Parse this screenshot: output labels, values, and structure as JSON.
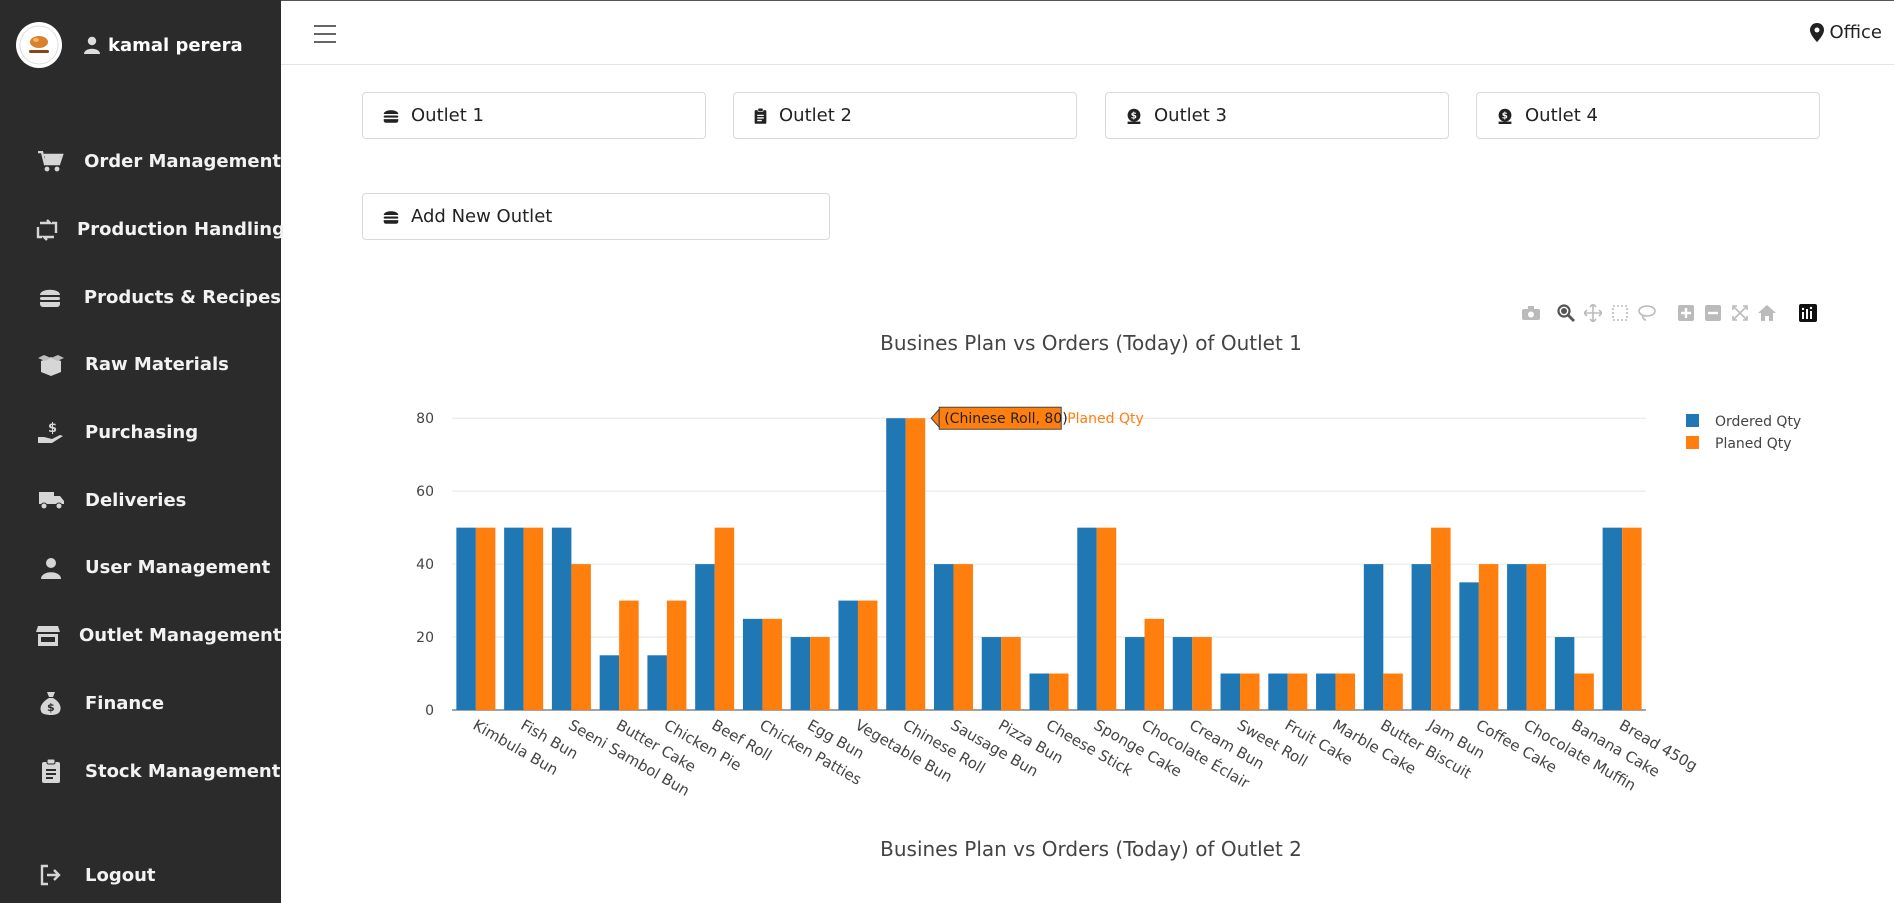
{
  "sidebar": {
    "user_name": "kamal perera",
    "items": [
      {
        "label": "Order Management",
        "icon": "cart-icon"
      },
      {
        "label": "Production Handling",
        "icon": "recycle-icon"
      },
      {
        "label": "Products & Recipes",
        "icon": "burger-icon"
      },
      {
        "label": "Raw Materials",
        "icon": "box-icon"
      },
      {
        "label": "Purchasing",
        "icon": "hand-coin-icon"
      },
      {
        "label": "Deliveries",
        "icon": "truck-icon"
      },
      {
        "label": "User Management",
        "icon": "user-icon"
      },
      {
        "label": "Outlet Management",
        "icon": "store-icon"
      },
      {
        "label": "Finance",
        "icon": "money-bag-icon"
      },
      {
        "label": "Stock Management",
        "icon": "clipboard-icon"
      }
    ],
    "logout_label": "Logout"
  },
  "topbar": {
    "location": "Office"
  },
  "outlets": [
    {
      "label": "Outlet 1",
      "icon": "burger-icon"
    },
    {
      "label": "Outlet 2",
      "icon": "clipboard-icon"
    },
    {
      "label": "Outlet 3",
      "icon": "money-icon"
    },
    {
      "label": "Outlet 4",
      "icon": "money-icon"
    }
  ],
  "add_outlet_label": "Add New Outlet",
  "chart_data": {
    "type": "bar",
    "title": "Busines Plan vs Orders (Today) of Outlet 1",
    "categories": [
      "Kimbula Bun",
      "Fish Bun",
      "Seeni Sambol Bun",
      "Butter Cake",
      "Chicken Pie",
      "Beef Roll",
      "Chicken Patties",
      "Egg Bun",
      "Vegetable Bun",
      "Chinese Roll",
      "Sausage Bun",
      "Pizza Bun",
      "Cheese Stick",
      "Sponge Cake",
      "Chocolate Éclair",
      "Cream Bun",
      "Sweet Roll",
      "Fruit Cake",
      "Marble Cake",
      "Butter Biscuit",
      "Jam Bun",
      "Coffee Cake",
      "Chocolate Muffin",
      "Banana Cake",
      "Bread 450g"
    ],
    "series": [
      {
        "name": "Ordered Qty",
        "color": "#1f77b4",
        "values": [
          50,
          50,
          50,
          15,
          15,
          40,
          25,
          20,
          30,
          80,
          40,
          20,
          10,
          50,
          20,
          20,
          10,
          10,
          10,
          40,
          40,
          35,
          40,
          20,
          50
        ]
      },
      {
        "name": "Planed Qty",
        "color": "#ff7f0e",
        "values": [
          50,
          50,
          40,
          30,
          30,
          50,
          25,
          20,
          30,
          80,
          40,
          20,
          10,
          50,
          25,
          20,
          10,
          10,
          10,
          10,
          50,
          40,
          40,
          10,
          50
        ]
      }
    ],
    "ylim": [
      0,
      85
    ],
    "yticks": [
      0,
      20,
      40,
      60,
      80
    ],
    "grid": true,
    "legend": "top-right",
    "hover": {
      "text": "(Chinese Roll, 80)",
      "series_label": "Planed Qty",
      "category_index": 9
    }
  },
  "second_chart_title": "Busines Plan vs Orders (Today) of Outlet 2"
}
